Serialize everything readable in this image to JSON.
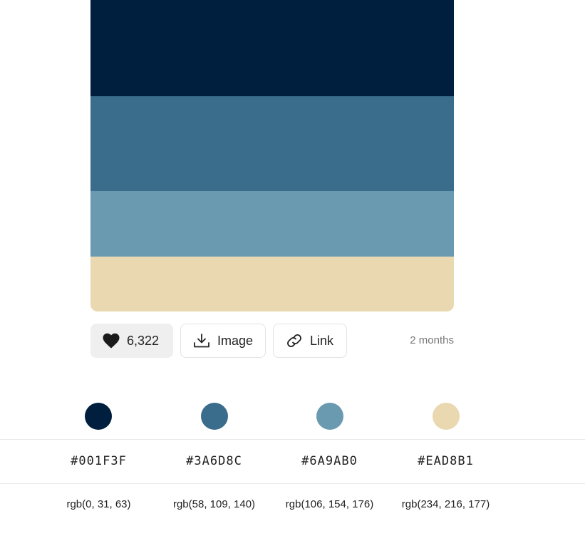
{
  "palette": {
    "colors": [
      {
        "hex": "#001F3F",
        "rgb": "rgb(0, 31, 63)",
        "fill": "#001F3F"
      },
      {
        "hex": "#3A6D8C",
        "rgb": "rgb(58, 109, 140)",
        "fill": "#3A6D8C"
      },
      {
        "hex": "#6A9AB0",
        "rgb": "rgb(106, 154, 176)",
        "fill": "#6A9AB0"
      },
      {
        "hex": "#EAD8B1",
        "rgb": "rgb(234, 216, 177)",
        "fill": "#EAD8B1"
      }
    ]
  },
  "actions": {
    "likes": "6,322",
    "like_icon": "heart-icon",
    "image_label": "Image",
    "image_icon": "download-icon",
    "link_label": "Link",
    "link_icon": "link-icon",
    "time_ago": "2 months"
  }
}
